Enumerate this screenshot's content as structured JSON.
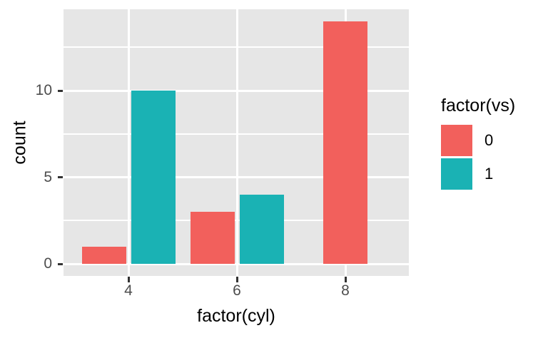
{
  "chart_data": {
    "type": "bar",
    "bar_layout": "dodged",
    "title": "",
    "xlabel": "factor(cyl)",
    "ylabel": "count",
    "legend_title": "factor(vs)",
    "legend_position": "right",
    "categories": [
      "4",
      "6",
      "8"
    ],
    "series": [
      {
        "name": "0",
        "color": "#F2605C",
        "values": [
          1,
          3,
          14
        ]
      },
      {
        "name": "1",
        "color": "#1AB2B4",
        "values": [
          10,
          4,
          0
        ]
      }
    ],
    "y_ticks": [
      0,
      5,
      10
    ],
    "y_minor_ticks": [
      2.5,
      7.5,
      12.5
    ],
    "ylim": [
      0,
      14.7
    ],
    "grid": true,
    "style": {
      "panel_bg": "#E6E6E6",
      "grid_color": "#FFFFFF",
      "tick_label_color": "#4D4D4D",
      "tick_mark_color": "#333333"
    }
  }
}
